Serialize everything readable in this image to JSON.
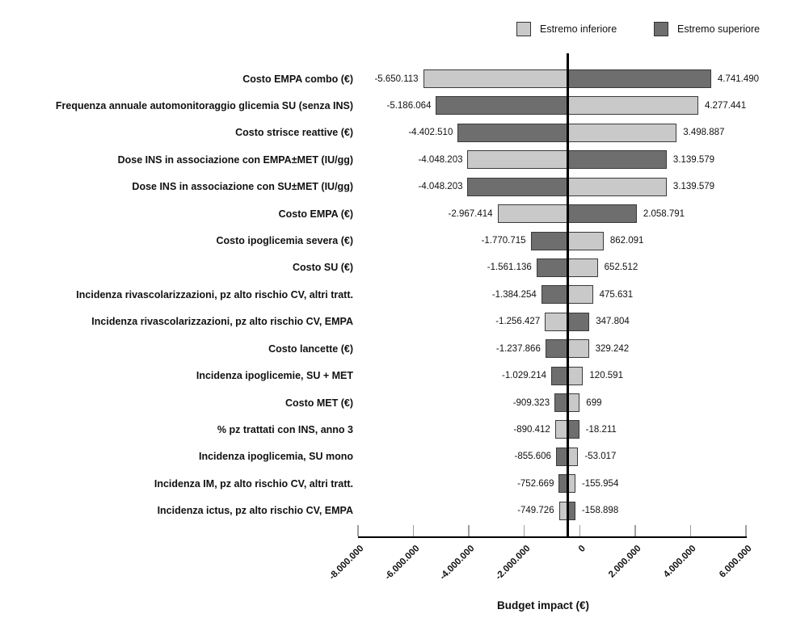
{
  "chart_data": {
    "type": "bar",
    "variant": "tornado",
    "title": "",
    "xlabel": "Budget impact (€)",
    "legend": [
      {
        "label": "Estremo inferiore",
        "color": "#c9c9c9"
      },
      {
        "label": "Estremo superiore",
        "color": "#6e6e6e"
      }
    ],
    "colors": {
      "light": "#c9c9c9",
      "dark": "#6e6e6e",
      "border": "#3a3a3a",
      "axis": "#000000",
      "tick": "#9f9f9f"
    },
    "axis": {
      "xlim": [
        -8000000,
        6000000
      ],
      "baseline_value": -427000,
      "ticks": [
        {
          "value": -8000000,
          "label": "-8.000.000"
        },
        {
          "value": -6000000,
          "label": "-6.000.000"
        },
        {
          "value": -4000000,
          "label": "-4.000.000"
        },
        {
          "value": -2000000,
          "label": "-2.000.000"
        },
        {
          "value": 0,
          "label": "0"
        },
        {
          "value": 2000000,
          "label": "2.000.000"
        },
        {
          "value": 4000000,
          "label": "4.000.000"
        },
        {
          "value": 6000000,
          "label": "6.000.000"
        }
      ]
    },
    "rows": [
      {
        "label": "Costo EMPA combo (€)",
        "low": -5650113,
        "high": 4741490,
        "low_label": "-5.650.113",
        "high_label": "4.741.490",
        "left_shade": "light",
        "right_shade": "dark"
      },
      {
        "label": "Frequenza annuale automonitoraggio glicemia SU (senza INS)",
        "low": -5186064,
        "high": 4277441,
        "low_label": "-5.186.064",
        "high_label": "4.277.441",
        "left_shade": "dark",
        "right_shade": "light"
      },
      {
        "label": "Costo strisce reattive (€)",
        "low": -4402510,
        "high": 3498887,
        "low_label": "-4.402.510",
        "high_label": "3.498.887",
        "left_shade": "dark",
        "right_shade": "light"
      },
      {
        "label": "Dose INS in associazione con EMPA±MET (IU/gg)",
        "low": -4048203,
        "high": 3139579,
        "low_label": "-4.048.203",
        "high_label": "3.139.579",
        "left_shade": "light",
        "right_shade": "dark"
      },
      {
        "label": "Dose INS in associazione con SU±MET (IU/gg)",
        "low": -4048203,
        "high": 3139579,
        "low_label": "-4.048.203",
        "high_label": "3.139.579",
        "left_shade": "dark",
        "right_shade": "light"
      },
      {
        "label": "Costo EMPA (€)",
        "low": -2967414,
        "high": 2058791,
        "low_label": "-2.967.414",
        "high_label": "2.058.791",
        "left_shade": "light",
        "right_shade": "dark"
      },
      {
        "label": "Costo ipoglicemia severa (€)",
        "low": -1770715,
        "high": 862091,
        "low_label": "-1.770.715",
        "high_label": "862.091",
        "left_shade": "dark",
        "right_shade": "light"
      },
      {
        "label": "Costo SU (€)",
        "low": -1561136,
        "high": 652512,
        "low_label": "-1.561.136",
        "high_label": "652.512",
        "left_shade": "dark",
        "right_shade": "light"
      },
      {
        "label": "Incidenza rivascolarizzazioni, pz alto rischio CV, altri tratt.",
        "low": -1384254,
        "high": 475631,
        "low_label": "-1.384.254",
        "high_label": "475.631",
        "left_shade": "dark",
        "right_shade": "light"
      },
      {
        "label": "Incidenza rivascolarizzazioni, pz alto rischio CV, EMPA",
        "low": -1256427,
        "high": 347804,
        "low_label": "-1.256.427",
        "high_label": "347.804",
        "left_shade": "light",
        "right_shade": "dark"
      },
      {
        "label": "Costo lancette (€)",
        "low": -1237866,
        "high": 329242,
        "low_label": "-1.237.866",
        "high_label": "329.242",
        "left_shade": "dark",
        "right_shade": "light"
      },
      {
        "label": "Incidenza ipoglicemie, SU + MET",
        "low": -1029214,
        "high": 120591,
        "low_label": "-1.029.214",
        "high_label": "120.591",
        "left_shade": "dark",
        "right_shade": "light"
      },
      {
        "label": "Costo MET (€)",
        "low": -909323,
        "high": 699,
        "low_label": "-909.323",
        "high_label": "699",
        "left_shade": "dark",
        "right_shade": "light"
      },
      {
        "label": "% pz trattati con INS, anno 3",
        "low": -890412,
        "high": -18211,
        "low_label": "-890.412",
        "high_label": "-18.211",
        "left_shade": "light",
        "right_shade": "dark"
      },
      {
        "label": "Incidenza ipoglicemia, SU mono",
        "low": -855606,
        "high": -53017,
        "low_label": "-855.606",
        "high_label": "-53.017",
        "left_shade": "dark",
        "right_shade": "light"
      },
      {
        "label": "Incidenza IM, pz alto rischio CV, altri tratt.",
        "low": -752669,
        "high": -155954,
        "low_label": "-752.669",
        "high_label": "-155.954",
        "left_shade": "dark",
        "right_shade": "light"
      },
      {
        "label": "Incidenza ictus, pz alto rischio CV, EMPA",
        "low": -749726,
        "high": -158898,
        "low_label": "-749.726",
        "high_label": "-158.898",
        "left_shade": "light",
        "right_shade": "dark"
      }
    ]
  }
}
